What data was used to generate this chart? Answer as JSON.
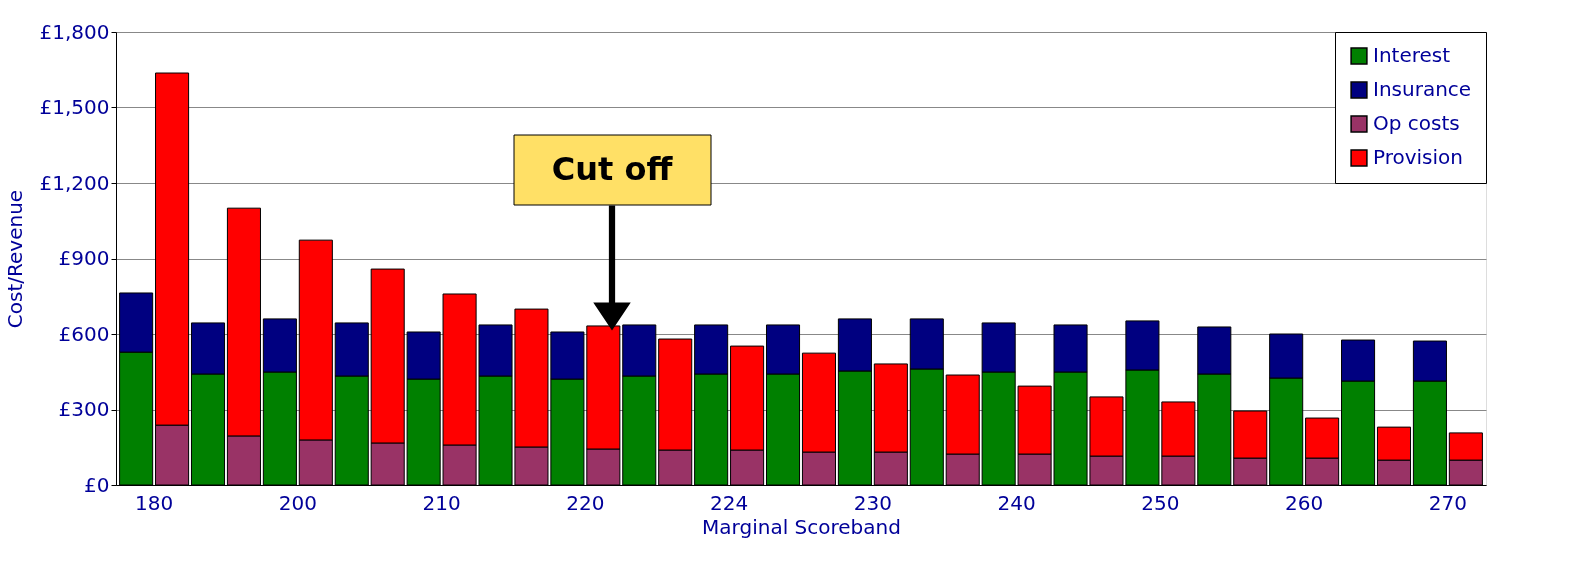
{
  "chart_data": {
    "type": "bar",
    "stacked": true,
    "xlabel": "Marginal Scoreband",
    "ylabel": "Cost/Revenue",
    "categories": [
      "180",
      null,
      null,
      null,
      "200",
      null,
      null,
      null,
      "210",
      null,
      null,
      null,
      "220",
      null,
      null,
      null,
      "224",
      null,
      null,
      null,
      "230",
      null,
      null,
      null,
      "240",
      null,
      null,
      null,
      "250",
      null,
      null,
      null,
      "260",
      null,
      null,
      null,
      "270",
      null
    ],
    "series": [
      {
        "name": "Interest",
        "color": "#008000",
        "values": [
          528,
          null,
          441,
          null,
          449,
          null,
          433,
          null,
          421,
          null,
          433,
          null,
          421,
          null,
          433,
          null,
          441,
          null,
          441,
          null,
          453,
          null,
          461,
          null,
          449,
          null,
          449,
          null,
          457,
          null,
          441,
          null,
          425,
          null,
          413,
          null,
          413,
          null
        ]
      },
      {
        "name": "Insurance",
        "color": "#000080",
        "values": [
          235,
          null,
          203,
          null,
          211,
          null,
          211,
          null,
          187,
          null,
          203,
          null,
          187,
          null,
          203,
          null,
          195,
          null,
          195,
          null,
          207,
          null,
          199,
          null,
          195,
          null,
          187,
          null,
          195,
          null,
          187,
          null,
          175,
          null,
          163,
          null,
          159,
          null
        ]
      },
      {
        "name": "Op costs",
        "color": "#993366",
        "values": [
          null,
          238,
          null,
          195,
          null,
          179,
          null,
          167,
          null,
          159,
          null,
          151,
          null,
          143,
          null,
          139,
          null,
          139,
          null,
          131,
          null,
          131,
          null,
          123,
          null,
          123,
          null,
          115,
          null,
          115,
          null,
          107,
          null,
          107,
          null,
          99,
          null,
          99
        ]
      },
      {
        "name": "Provision",
        "color": "#ff0000",
        "values": [
          null,
          1399,
          null,
          905,
          null,
          794,
          null,
          691,
          null,
          600,
          null,
          548,
          null,
          489,
          null,
          441,
          null,
          413,
          null,
          393,
          null,
          350,
          null,
          314,
          null,
          270,
          null,
          235,
          null,
          215,
          null,
          187,
          null,
          159,
          null,
          131,
          null,
          108
        ]
      }
    ],
    "ylim": [
      0,
      1800
    ],
    "yticks": [
      {
        "value": 0,
        "label": "£0"
      },
      {
        "value": 300,
        "label": "£300"
      },
      {
        "value": 600,
        "label": "£600"
      },
      {
        "value": 900,
        "label": "£900"
      },
      {
        "value": 1200,
        "label": "£1,200"
      },
      {
        "value": 1500,
        "label": "£1,500"
      },
      {
        "value": 1800,
        "label": "£1,800"
      }
    ],
    "grid": "y",
    "legend": "top right",
    "annotations": [
      "Cut off"
    ]
  }
}
